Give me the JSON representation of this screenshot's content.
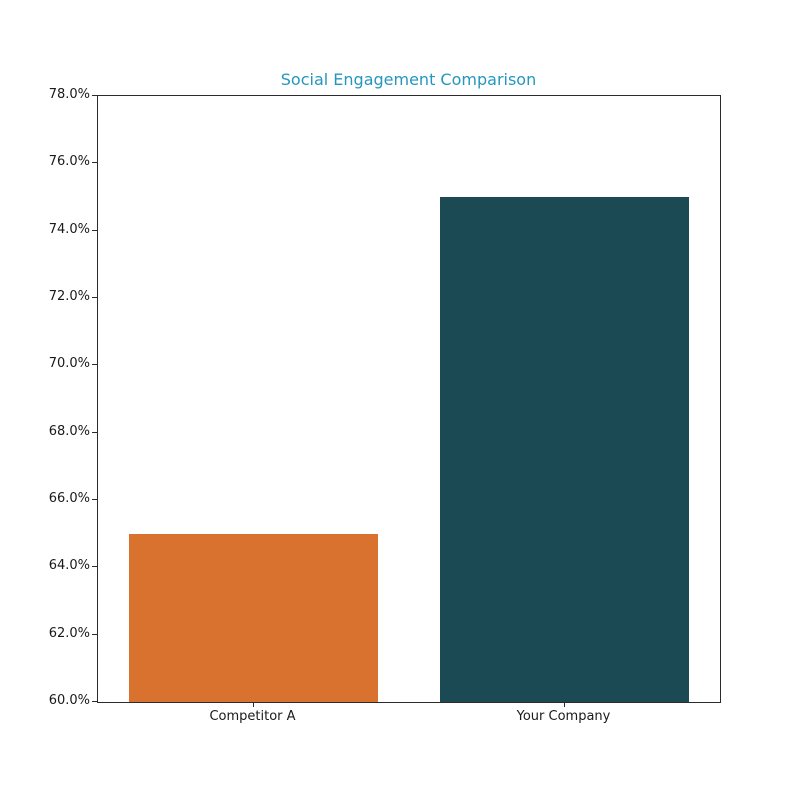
{
  "chart_data": {
    "type": "bar",
    "title": "Social Engagement Comparison",
    "title_color": "#2596be",
    "categories": [
      "Competitor A",
      "Your Company"
    ],
    "values": [
      65.0,
      75.0
    ],
    "value_unit": "%",
    "series": [
      {
        "name": "Competitor A",
        "value": 65.0,
        "color": "#d9712f"
      },
      {
        "name": "Your Company",
        "value": 75.0,
        "color": "#1b4a54"
      }
    ],
    "bar_colors": [
      "#d9712f",
      "#1b4a54"
    ],
    "xlabel": "",
    "ylabel": "",
    "ylim": [
      60.0,
      78.0
    ],
    "ytick_step": 2.0,
    "ytick_labels": [
      "60.0%",
      "62.0%",
      "64.0%",
      "66.0%",
      "68.0%",
      "70.0%",
      "72.0%",
      "74.0%",
      "76.0%",
      "78.0%"
    ],
    "grid": false,
    "legend": "none",
    "axis_color": "#2b2b2b",
    "background_color": "#ffffff",
    "bar_width_fraction": 0.4
  }
}
